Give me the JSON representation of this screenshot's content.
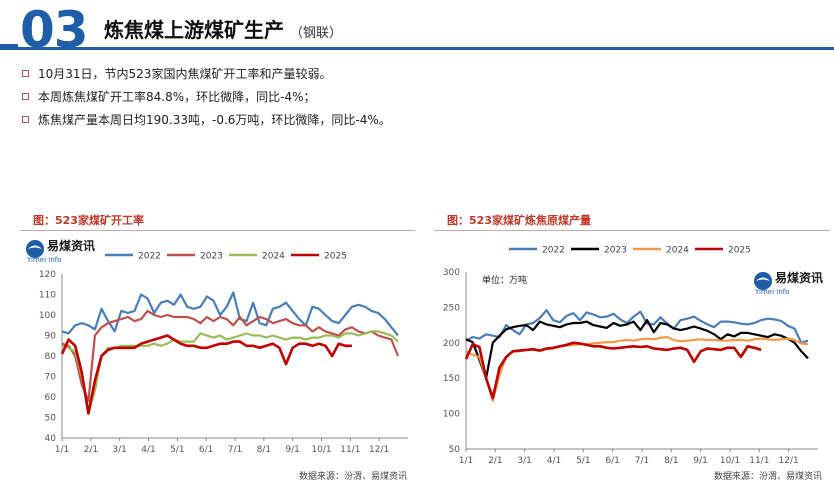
{
  "header": {
    "number": "03",
    "title": "炼焦煤上游煤矿生产",
    "subtitle": "（钢联）"
  },
  "bullets": [
    "10月31日，节内523家国内焦煤矿开工率和产量较弱。",
    "本周炼焦煤矿开工率84.8%，环比微降，同比-4%；",
    "炼焦煤产量本周日均190.33吨，-0.6万吨，环比微降，同比-4%。"
  ],
  "logo_text": "易煤资讯",
  "logo_sub": "Yimei Info",
  "colors": {
    "2022": "#4a7ebb",
    "2023": "#c0504d",
    "2024": "#9bbb59",
    "2025": "#c00000",
    "2023_right": "#000000",
    "2024_right": "#f79646"
  },
  "chart_data": [
    {
      "type": "line",
      "title": "图：523家煤矿开工率",
      "source": "数据来源：汾渭、易煤资讯",
      "x_ticks": [
        "1/1",
        "2/1",
        "3/1",
        "4/1",
        "5/1",
        "6/1",
        "7/1",
        "8/1",
        "9/1",
        "10/1",
        "11/1",
        "12/1"
      ],
      "ylim": [
        40,
        120
      ],
      "y_ticks": [
        "40",
        "50",
        "60",
        "70",
        "80",
        "90",
        "100",
        "110",
        "120"
      ],
      "legend": [
        "2022",
        "2023",
        "2024",
        "2025"
      ],
      "series": [
        {
          "name": "2022",
          "values": [
            92,
            91,
            95,
            96,
            95,
            93,
            103,
            97,
            92,
            102,
            101,
            102,
            110,
            108,
            101,
            106,
            107,
            105,
            110,
            104,
            103,
            104,
            109,
            107,
            100,
            104,
            111,
            98,
            97,
            106,
            96,
            95,
            103,
            104,
            106,
            102,
            98,
            95,
            104,
            103,
            100,
            97,
            96,
            100,
            104,
            105,
            104,
            102,
            101,
            98,
            94,
            90
          ]
        },
        {
          "name": "2023",
          "values": [
            86,
            85,
            80,
            66,
            58,
            90,
            94,
            96,
            97,
            98,
            99,
            97,
            98,
            102,
            100,
            99,
            100,
            99,
            99,
            99,
            98,
            96,
            99,
            97,
            99,
            98,
            95,
            99,
            95,
            97,
            99,
            98,
            96,
            97,
            98,
            96,
            95,
            95,
            92,
            94,
            92,
            91,
            90,
            93,
            94,
            92,
            91,
            92,
            90,
            89,
            88,
            80
          ]
        },
        {
          "name": "2024",
          "values": [
            85,
            84,
            82,
            70,
            52,
            63,
            80,
            84,
            84,
            85,
            85,
            85,
            85,
            85,
            86,
            85,
            86,
            88,
            87,
            87,
            87,
            91,
            90,
            89,
            90,
            88,
            89,
            90,
            91,
            90,
            90,
            89,
            90,
            89,
            88,
            89,
            89,
            88,
            89,
            89,
            90,
            90,
            89,
            91,
            91,
            90,
            91,
            92,
            92,
            91,
            90,
            87
          ]
        },
        {
          "name": "2025",
          "values": [
            81,
            88,
            85,
            72,
            52,
            68,
            80,
            83,
            84,
            84,
            84,
            84,
            86,
            87,
            88,
            89,
            90,
            88,
            86,
            85,
            85,
            84,
            84,
            85,
            86,
            86,
            87,
            87,
            85,
            85,
            84,
            85,
            86,
            84,
            76,
            84,
            86,
            86,
            85,
            86,
            85,
            80,
            86,
            85,
            85
          ]
        }
      ]
    },
    {
      "type": "line",
      "title": "图：523家煤矿炼焦原煤产量",
      "source": "数据来源：汾渭、易煤资讯",
      "unit_label": "单位：万吨",
      "x_ticks": [
        "1/1",
        "2/1",
        "3/1",
        "4/1",
        "5/1",
        "6/1",
        "7/1",
        "8/1",
        "9/1",
        "10/1",
        "11/1",
        "12/1"
      ],
      "ylim": [
        50,
        300
      ],
      "y_ticks": [
        "50",
        "100",
        "150",
        "200",
        "250",
        "300"
      ],
      "legend": [
        "2022",
        "2023",
        "2024",
        "2025"
      ],
      "series": [
        {
          "name": "2022",
          "values": [
            203,
            208,
            206,
            212,
            210,
            208,
            225,
            218,
            212,
            226,
            228,
            235,
            246,
            232,
            229,
            238,
            242,
            232,
            243,
            240,
            236,
            237,
            241,
            233,
            228,
            237,
            244,
            227,
            226,
            236,
            227,
            220,
            232,
            234,
            237,
            231,
            226,
            222,
            230,
            230,
            229,
            227,
            226,
            228,
            232,
            234,
            233,
            231,
            224,
            220,
            200,
            203
          ]
        },
        {
          "name": "2023",
          "values": [
            205,
            201,
            176,
            150,
            200,
            210,
            219,
            222,
            224,
            225,
            218,
            230,
            226,
            224,
            222,
            226,
            228,
            228,
            230,
            225,
            223,
            221,
            228,
            224,
            226,
            230,
            218,
            232,
            215,
            228,
            226,
            220,
            218,
            220,
            223,
            220,
            217,
            212,
            205,
            212,
            209,
            214,
            214,
            212,
            210,
            208,
            212,
            210,
            206,
            200,
            188,
            178
          ]
        },
        {
          "name": "2024",
          "values": [
            188,
            183,
            180,
            150,
            118,
            155,
            180,
            188,
            188,
            190,
            190,
            189,
            191,
            192,
            195,
            196,
            197,
            198,
            198,
            199,
            200,
            201,
            201,
            203,
            204,
            203,
            205,
            206,
            205,
            207,
            208,
            204,
            202,
            203,
            204,
            205,
            204,
            204,
            203,
            203,
            204,
            204,
            203,
            205,
            206,
            205,
            204,
            205,
            206,
            204,
            199,
            198
          ]
        },
        {
          "name": "2025",
          "values": [
            177,
            198,
            194,
            150,
            122,
            165,
            180,
            188,
            189,
            190,
            191,
            189,
            192,
            193,
            195,
            197,
            200,
            199,
            197,
            195,
            195,
            193,
            192,
            193,
            194,
            195,
            194,
            195,
            192,
            191,
            190,
            192,
            193,
            190,
            173,
            188,
            192,
            191,
            190,
            193,
            193,
            180,
            195,
            193,
            190
          ]
        }
      ]
    }
  ]
}
